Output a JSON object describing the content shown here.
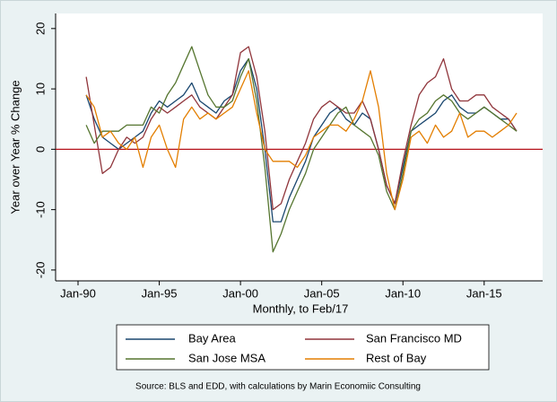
{
  "chart_data": {
    "type": "line",
    "ylabel": "Year over Year % Change",
    "xlabel": "Monthly, to Feb/17",
    "source": "Source: BLS and EDD, with calculations by Marin Economiic Consulting",
    "xlim": [
      1988.62,
      2018.6
    ],
    "ylim": [
      -21.8,
      22.5
    ],
    "xticks": [
      {
        "value": 1990,
        "label": "Jan-90"
      },
      {
        "value": 1995,
        "label": "Jan-95"
      },
      {
        "value": 2000,
        "label": "Jan-00"
      },
      {
        "value": 2005,
        "label": "Jan-05"
      },
      {
        "value": 2010,
        "label": "Jan-10"
      },
      {
        "value": 2015,
        "label": "Jan-15"
      }
    ],
    "yticks": [
      -20,
      -10,
      0,
      10,
      20
    ],
    "reference_line": {
      "value": 0,
      "color": "#b5121b"
    },
    "x": [
      1990.5,
      1991,
      1991.5,
      1992,
      1992.5,
      1993,
      1993.5,
      1994,
      1994.5,
      1995,
      1995.5,
      1996,
      1996.5,
      1997,
      1997.5,
      1998,
      1998.5,
      1999,
      1999.5,
      2000,
      2000.5,
      2001,
      2001.5,
      2002,
      2002.5,
      2003,
      2003.5,
      2004,
      2004.5,
      2005,
      2005.5,
      2006,
      2006.5,
      2007,
      2007.5,
      2008,
      2008.5,
      2009,
      2009.5,
      2010,
      2010.5,
      2011,
      2011.5,
      2012,
      2012.5,
      2013,
      2013.5,
      2014,
      2014.5,
      2015,
      2015.5,
      2016,
      2016.5,
      2017
    ],
    "series": [
      {
        "name": "Bay Area",
        "color": "#1a476f",
        "values": [
          9,
          5,
          2,
          1,
          0,
          1,
          2,
          3,
          6,
          8,
          7,
          8,
          9,
          11,
          8,
          7,
          6,
          8,
          9,
          13,
          15,
          10,
          0,
          -12,
          -12,
          -8,
          -5,
          -2,
          2,
          4,
          6,
          7,
          5,
          4,
          6,
          5,
          0,
          -6,
          -9,
          -3,
          3,
          4,
          5,
          6,
          8,
          9,
          7,
          6,
          6,
          7,
          6,
          5,
          5,
          3
        ]
      },
      {
        "name": "San Francisco MD",
        "color": "#90353b",
        "values": [
          12,
          4,
          -4,
          -3,
          0,
          2,
          1,
          2,
          5,
          7,
          6,
          7,
          8,
          9,
          7,
          6,
          5,
          7,
          9,
          16,
          17,
          12,
          3,
          -10,
          -9,
          -5,
          -2,
          1,
          5,
          7,
          8,
          7,
          6,
          6,
          8,
          5,
          0,
          -6,
          -9,
          -2,
          4,
          9,
          11,
          12,
          15,
          10,
          8,
          8,
          9,
          9,
          7,
          6,
          5,
          3
        ]
      },
      {
        "name": "San Jose MSA",
        "color": "#55752f",
        "values": [
          4,
          1,
          3,
          3,
          3,
          4,
          4,
          4,
          7,
          6,
          9,
          11,
          14,
          17,
          13,
          9,
          7,
          7,
          8,
          12,
          15,
          8,
          -3,
          -17,
          -14,
          -10,
          -7,
          -4,
          0,
          2,
          4,
          6,
          7,
          4,
          3,
          2,
          -1,
          -7,
          -10,
          -4,
          3,
          5,
          6,
          8,
          9,
          8,
          6,
          5,
          6,
          7,
          6,
          5,
          4,
          3
        ]
      },
      {
        "name": "Rest of Bay",
        "color": "#e37e00",
        "values": [
          9,
          7,
          2,
          3,
          1,
          0,
          2,
          -3,
          2,
          4,
          0,
          -3,
          5,
          7,
          5,
          6,
          5,
          6,
          7,
          10,
          13,
          6,
          0,
          -2,
          -2,
          -2,
          -3,
          -1,
          2,
          3,
          4,
          4,
          3,
          5,
          8,
          13,
          7,
          -4,
          -10,
          -5,
          2,
          3,
          1,
          4,
          2,
          3,
          6,
          2,
          3,
          3,
          2,
          3,
          4,
          6
        ]
      }
    ]
  }
}
